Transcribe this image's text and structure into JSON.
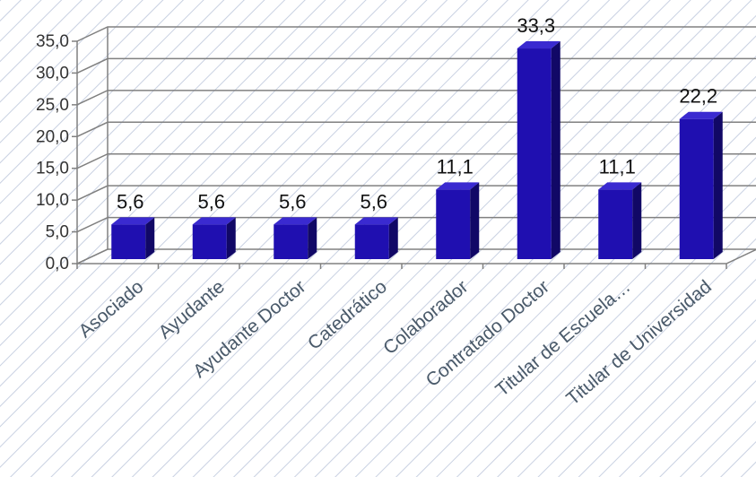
{
  "chart_data": {
    "type": "bar",
    "title": "",
    "xlabel": "",
    "ylabel": "",
    "categories": [
      "Asociado",
      "Ayudante",
      "Ayudante Doctor",
      "Catedrático",
      "Colaborador",
      "Contratado Doctor",
      "Titular de Escuela…",
      "Titular de Universidad"
    ],
    "values": [
      5.6,
      5.6,
      5.6,
      5.6,
      11.1,
      33.3,
      11.1,
      22.2
    ],
    "value_labels": [
      "5,6",
      "5,6",
      "5,6",
      "5,6",
      "11,1",
      "33,3",
      "11,1",
      "22,2"
    ],
    "ylim": [
      0,
      35
    ],
    "yticks": [
      0,
      5,
      10,
      15,
      20,
      25,
      30,
      35
    ],
    "ytick_labels": [
      "0,0",
      "5,0",
      "10,0",
      "15,0",
      "20,0",
      "25,0",
      "30,0",
      "35,0"
    ],
    "grid": true,
    "legend": "none",
    "colors": {
      "bar_front": "#1f0fb0",
      "bar_side": "#110866",
      "bar_top": "#3a2ad0",
      "grid": "#808080",
      "hatch": "#c9d1e2"
    }
  }
}
